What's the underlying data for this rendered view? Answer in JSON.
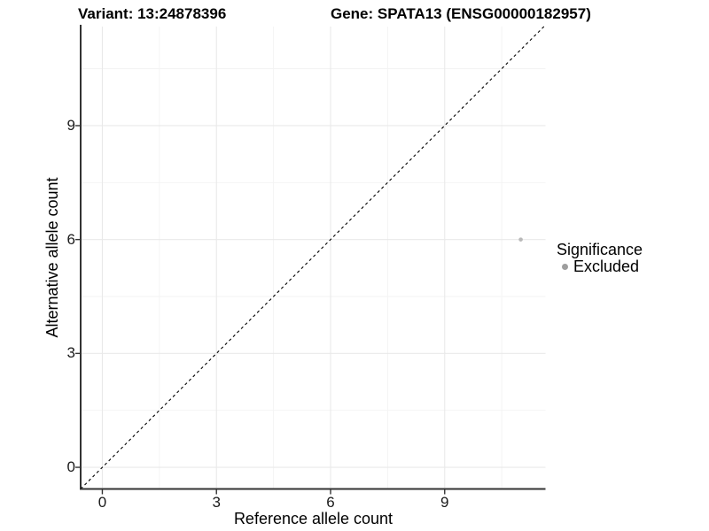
{
  "chart_data": {
    "type": "scatter",
    "title_left": "Variant: 13:24878396",
    "title_right": "Gene: SPATA13 (ENSG00000182957)",
    "xlabel": "Reference allele count",
    "ylabel": "Alternative allele count",
    "xlim": [
      -0.57,
      11.65
    ],
    "ylim": [
      -0.57,
      11.61
    ],
    "x_ticks": [
      0,
      3,
      6,
      9
    ],
    "y_ticks": [
      0,
      3,
      6,
      9
    ],
    "tick_step": 3,
    "minor_gridlines": true,
    "reference_line": {
      "type": "identity",
      "style": "dashed",
      "color": "#000000"
    },
    "series": [
      {
        "name": "Excluded",
        "color": "#b9b9b9",
        "points": [
          [
            11,
            6
          ]
        ]
      }
    ],
    "legend": {
      "title": "Significance",
      "position": "right",
      "items": [
        {
          "label": "Excluded",
          "color": "#9e9e9e"
        }
      ]
    },
    "colors": {
      "grid_major": "#e9e9e9",
      "grid_minor": "#f3f3f3",
      "axis_line": "#333333",
      "background": "#ffffff"
    }
  }
}
